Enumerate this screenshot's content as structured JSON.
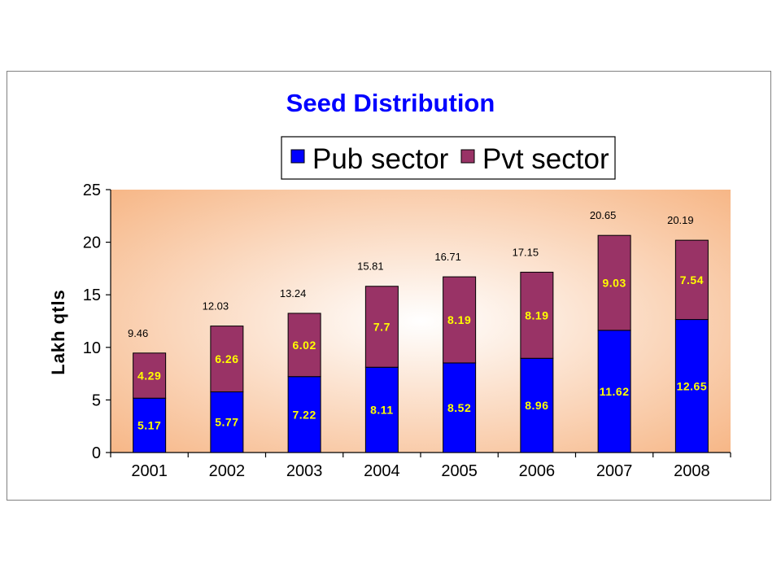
{
  "colors": {
    "pub": "#0000FF",
    "pvt": "#993366",
    "title": "#0000FF",
    "segment_label": "#FFFF00",
    "plot_center": "#FFFFFF",
    "plot_edge": "#F6B27F"
  },
  "chart_data": {
    "type": "bar",
    "stacked": true,
    "title": "Seed Distribution",
    "xlabel": "",
    "ylabel": "Lakh  qtls",
    "ylim": [
      0,
      25
    ],
    "yticks": [
      "0",
      "5",
      "10",
      "15",
      "20",
      "25"
    ],
    "grid": false,
    "legend_position": "top-center",
    "categories": [
      "2001",
      "2002",
      "2003",
      "2004",
      "2005",
      "2006",
      "2007",
      "2008"
    ],
    "series": [
      {
        "name": "Pub sector",
        "values": [
          5.17,
          5.77,
          7.22,
          8.11,
          8.52,
          8.96,
          11.62,
          12.65
        ],
        "labels": [
          "5.17",
          "5.77",
          "7.22",
          "8.11",
          "8.52",
          "8.96",
          "11.62",
          "12.65"
        ]
      },
      {
        "name": "Pvt sector",
        "values": [
          4.29,
          6.26,
          6.02,
          7.7,
          8.19,
          8.19,
          9.03,
          7.54
        ],
        "labels": [
          "4.29",
          "6.26",
          "6.02",
          "7.7",
          "8.19",
          "8.19",
          "9.03",
          "7.54"
        ]
      }
    ],
    "totals": [
      "9.46",
      "12.03",
      "13.24",
      "15.81",
      "16.71",
      "17.15",
      "20.65",
      "20.19"
    ]
  }
}
